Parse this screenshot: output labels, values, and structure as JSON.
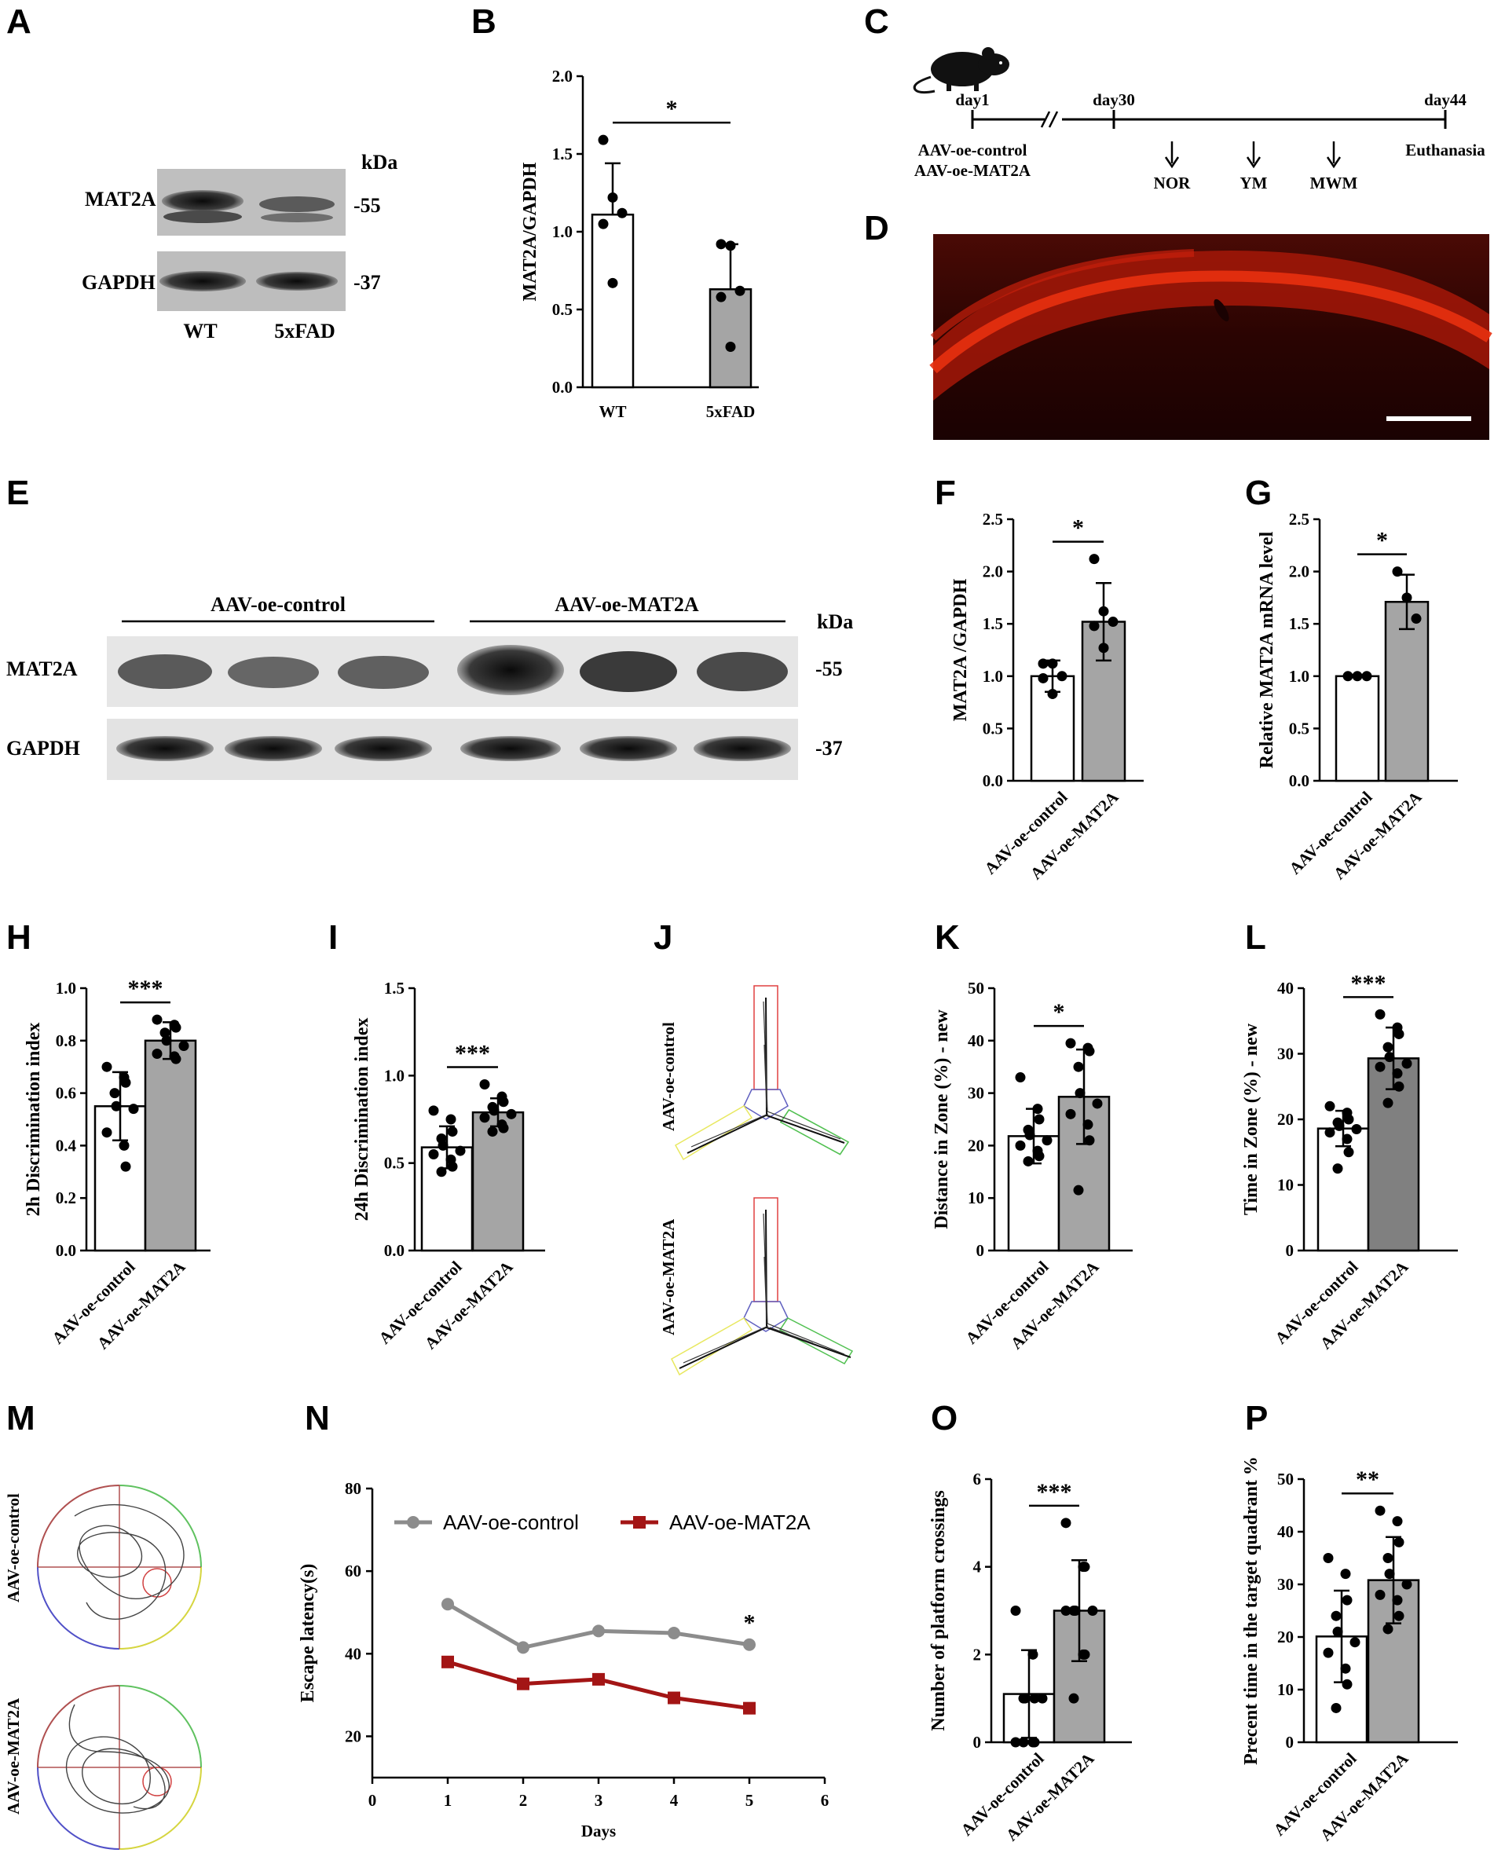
{
  "panels": [
    "A",
    "B",
    "C",
    "D",
    "E",
    "F",
    "G",
    "H",
    "I",
    "J",
    "K",
    "L",
    "M",
    "N",
    "O",
    "P"
  ],
  "blotA": {
    "kda": "kDa",
    "rows": [
      "MAT2A",
      "GAPDH"
    ],
    "mw": [
      "-55",
      "-37"
    ],
    "lanes": [
      "WT",
      "5xFAD"
    ]
  },
  "timeline": {
    "days": [
      "day1",
      "day30",
      "day44"
    ],
    "groups": [
      "AAV-oe-control",
      "AAV-oe-MAT2A"
    ],
    "tests": [
      "NOR",
      "YM",
      "MWM"
    ],
    "end": "Euthanasia"
  },
  "blotE": {
    "kda": "kDa",
    "groups": [
      "AAV-oe-control",
      "AAV-oe-MAT2A"
    ],
    "rows": [
      "MAT2A",
      "GAPDH"
    ],
    "mw": [
      "-55",
      "-37"
    ]
  },
  "mazeLabels": [
    "AAV-oe-control",
    "AAV-oe-MAT2A"
  ],
  "colors": {
    "bar_control": "#ffffff",
    "bar_mat2a": "#a5a5a5",
    "bar_L": "#808080",
    "line_control": "#8c8c8c",
    "line_mat2a": "#a31515",
    "fluor": "#c8200c"
  },
  "chart_data": [
    {
      "panel": "B",
      "type": "bar",
      "categories": [
        "WT",
        "5xFAD"
      ],
      "values": [
        1.11,
        0.63
      ],
      "errors": [
        0.33,
        0.29
      ],
      "points": [
        [
          1.59,
          1.22,
          1.12,
          1.05,
          0.67
        ],
        [
          0.92,
          0.91,
          0.62,
          0.58,
          0.26
        ]
      ],
      "ylabel": "MAT2A/GAPDH",
      "ylim": [
        0,
        2.0
      ],
      "yticks": [
        "0.0",
        "0.5",
        "1.0",
        "1.5",
        "2.0"
      ],
      "sig": "*"
    },
    {
      "panel": "F",
      "type": "bar",
      "categories": [
        "AAV-oe-control",
        "AAV-oe-MAT2A"
      ],
      "values": [
        1.0,
        1.52
      ],
      "errors": [
        0.15,
        0.37
      ],
      "points": [
        [
          1.12,
          1.12,
          1.0,
          0.98,
          0.83
        ],
        [
          2.12,
          1.62,
          1.52,
          1.48,
          1.27
        ]
      ],
      "ylabel": "MAT2A /GAPDH",
      "ylim": [
        0,
        2.5
      ],
      "yticks": [
        "0.0",
        "0.5",
        "1.0",
        "1.5",
        "2.0",
        "2.5"
      ],
      "sig": "*"
    },
    {
      "panel": "G",
      "type": "bar",
      "categories": [
        "AAV-oe-control",
        "AAV-oe-MAT2A"
      ],
      "values": [
        1.0,
        1.71
      ],
      "errors": [
        0,
        0.26
      ],
      "points": [
        [
          1.0,
          1.0,
          1.0
        ],
        [
          2.0,
          1.75,
          1.55
        ]
      ],
      "ylabel": "Relative MAT2A mRNA level",
      "ylim": [
        0,
        2.5
      ],
      "yticks": [
        "0.0",
        "0.5",
        "1.0",
        "1.5",
        "2.0",
        "2.5"
      ],
      "sig": "*"
    },
    {
      "panel": "H",
      "type": "bar",
      "categories": [
        "AAV-oe-control",
        "AAV-oe-MAT2A"
      ],
      "values": [
        0.55,
        0.8
      ],
      "errors": [
        0.13,
        0.07
      ],
      "points": [
        [
          0.7,
          0.66,
          0.64,
          0.6,
          0.55,
          0.54,
          0.45,
          0.4,
          0.32
        ],
        [
          0.88,
          0.86,
          0.85,
          0.83,
          0.8,
          0.78,
          0.75,
          0.74,
          0.73
        ]
      ],
      "ylabel": "2h Discrimination index",
      "ylim": [
        0,
        1.0
      ],
      "yticks": [
        "0.0",
        "0.2",
        "0.4",
        "0.6",
        "0.8",
        "1.0"
      ],
      "sig": "***"
    },
    {
      "panel": "I",
      "type": "bar",
      "categories": [
        "AAV-oe-control",
        "AAV-oe-MAT2A"
      ],
      "values": [
        0.59,
        0.79
      ],
      "errors": [
        0.12,
        0.08
      ],
      "points": [
        [
          0.8,
          0.75,
          0.68,
          0.64,
          0.6,
          0.57,
          0.55,
          0.52,
          0.48,
          0.45
        ],
        [
          0.95,
          0.88,
          0.85,
          0.82,
          0.8,
          0.78,
          0.76,
          0.72,
          0.7,
          0.68
        ]
      ],
      "ylabel": "24h Discrimination index",
      "ylim": [
        0,
        1.5
      ],
      "yticks": [
        "0.0",
        "0.5",
        "1.0",
        "1.5"
      ],
      "sig": "***"
    },
    {
      "panel": "K",
      "type": "bar",
      "categories": [
        "AAV-oe-control",
        "AAV-oe-MAT2A"
      ],
      "values": [
        21.8,
        29.3
      ],
      "errors": [
        5.2,
        9.0
      ],
      "points": [
        [
          33,
          27,
          25,
          23,
          22,
          21,
          20,
          19,
          18,
          17
        ],
        [
          39.5,
          38.6,
          38,
          35,
          30,
          28,
          26,
          24,
          21,
          11.5
        ]
      ],
      "ylabel": "Distance in Zone (%) - new",
      "ylim": [
        0,
        50
      ],
      "yticks": [
        "0",
        "10",
        "20",
        "30",
        "40",
        "50"
      ],
      "sig": "*"
    },
    {
      "panel": "L",
      "type": "bar",
      "categories": [
        "AAV-oe-control",
        "AAV-oe-MAT2A"
      ],
      "values": [
        18.6,
        29.3
      ],
      "errors": [
        2.7,
        4.7
      ],
      "points": [
        [
          22,
          21,
          20,
          19.5,
          19,
          18.5,
          18,
          17,
          15,
          12.5
        ],
        [
          36,
          34,
          33,
          31,
          29.5,
          28.5,
          28,
          27,
          25,
          22.5
        ]
      ],
      "ylabel": "Time in Zone (%) - new",
      "ylim": [
        0,
        40
      ],
      "yticks": [
        "0",
        "10",
        "20",
        "30",
        "40"
      ],
      "sig": "***"
    },
    {
      "panel": "N",
      "type": "line",
      "x": [
        1,
        2,
        3,
        4,
        5
      ],
      "series": [
        {
          "name": "AAV-oe-control",
          "values": [
            52,
            41.5,
            45.5,
            45,
            42.2
          ]
        },
        {
          "name": "AAV-oe-MAT2A",
          "values": [
            38,
            32.7,
            33.8,
            29.3,
            26.8
          ]
        }
      ],
      "xlabel": "Days",
      "ylabel": "Escape latency(s)",
      "xlim": [
        0,
        6
      ],
      "ylim": [
        10,
        80
      ],
      "xticks": [
        "0",
        "1",
        "2",
        "3",
        "4",
        "5",
        "6"
      ],
      "yticks": [
        "20",
        "40",
        "60",
        "80"
      ],
      "sig": "*"
    },
    {
      "panel": "O",
      "type": "bar",
      "categories": [
        "AAV-oe-control",
        "AAV-oe-MAT2A"
      ],
      "values": [
        1.1,
        3.0
      ],
      "errors": [
        1.0,
        1.15
      ],
      "points": [
        [
          3,
          2,
          1,
          1,
          1,
          1,
          0,
          0,
          0,
          0
        ],
        [
          5,
          4,
          4,
          3,
          3,
          3,
          3,
          2,
          2,
          1
        ]
      ],
      "ylabel": "Number of platform crossings",
      "ylim": [
        0,
        6
      ],
      "yticks": [
        "0",
        "2",
        "4",
        "6"
      ],
      "sig": "***"
    },
    {
      "panel": "P",
      "type": "bar",
      "categories": [
        "AAV-oe-control",
        "AAV-oe-MAT2A"
      ],
      "values": [
        20.1,
        30.8
      ],
      "errors": [
        8.7,
        8.2
      ],
      "points": [
        [
          35,
          32,
          27,
          24,
          21,
          19,
          17,
          14,
          11,
          6.5
        ],
        [
          44,
          42,
          38,
          35,
          32,
          30,
          28,
          27,
          24,
          21.5
        ]
      ],
      "ylabel": "Precent time in the target quadrant %",
      "ylim": [
        0,
        50
      ],
      "yticks": [
        "0",
        "10",
        "20",
        "30",
        "40",
        "50"
      ],
      "sig": "**"
    }
  ]
}
